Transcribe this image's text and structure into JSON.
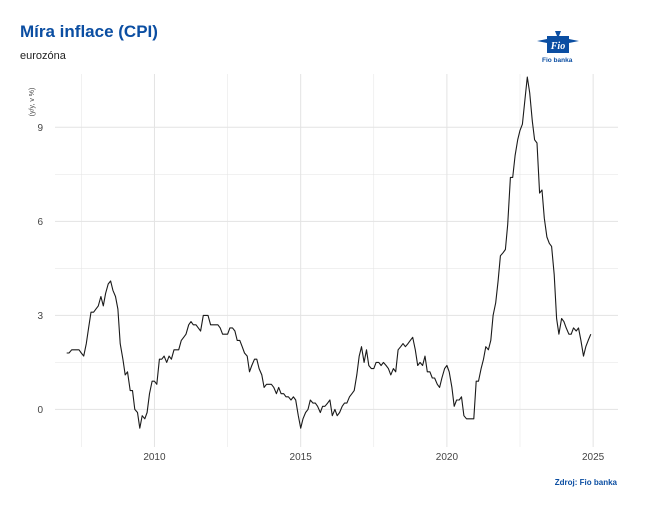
{
  "header": {
    "title": "Míra inflace (CPI)",
    "subtitle": "eurozóna",
    "logo_text": "Fio banka",
    "logo_mark": "Fio",
    "source": "Zdroj: Fio banka"
  },
  "colors": {
    "title": "#0b4ea2",
    "line": "#1a1a1a",
    "grid": "#e3e3e3"
  },
  "chart_data": {
    "type": "line",
    "title": "Míra inflace (CPI)",
    "subtitle": "eurozóna",
    "xlabel": "",
    "ylabel": "(y/y, v %)",
    "xlim": [
      2006.6,
      2025.85
    ],
    "ylim": [
      -1.2,
      10.7
    ],
    "xticks": [
      2010,
      2015,
      2020,
      2025
    ],
    "yticks": [
      0,
      3,
      6,
      9
    ],
    "grid": true,
    "legend": "none",
    "series": [
      {
        "name": "",
        "x": [
          2007.0,
          2007.08,
          2007.17,
          2007.25,
          2007.33,
          2007.42,
          2007.5,
          2007.58,
          2007.67,
          2007.75,
          2007.83,
          2007.92,
          2008.0,
          2008.08,
          2008.17,
          2008.25,
          2008.33,
          2008.42,
          2008.5,
          2008.58,
          2008.67,
          2008.75,
          2008.83,
          2008.92,
          2009.0,
          2009.08,
          2009.17,
          2009.25,
          2009.33,
          2009.42,
          2009.5,
          2009.58,
          2009.67,
          2009.75,
          2009.83,
          2009.92,
          2010.0,
          2010.08,
          2010.17,
          2010.25,
          2010.33,
          2010.42,
          2010.5,
          2010.58,
          2010.67,
          2010.75,
          2010.83,
          2010.92,
          2011.0,
          2011.08,
          2011.17,
          2011.25,
          2011.33,
          2011.42,
          2011.5,
          2011.58,
          2011.67,
          2011.75,
          2011.83,
          2011.92,
          2012.0,
          2012.08,
          2012.17,
          2012.25,
          2012.33,
          2012.42,
          2012.5,
          2012.58,
          2012.67,
          2012.75,
          2012.83,
          2012.92,
          2013.0,
          2013.08,
          2013.17,
          2013.25,
          2013.33,
          2013.42,
          2013.5,
          2013.58,
          2013.67,
          2013.75,
          2013.83,
          2013.92,
          2014.0,
          2014.08,
          2014.17,
          2014.25,
          2014.33,
          2014.42,
          2014.5,
          2014.58,
          2014.67,
          2014.75,
          2014.83,
          2014.92,
          2015.0,
          2015.08,
          2015.17,
          2015.25,
          2015.33,
          2015.42,
          2015.5,
          2015.58,
          2015.67,
          2015.75,
          2015.83,
          2015.92,
          2016.0,
          2016.08,
          2016.17,
          2016.25,
          2016.33,
          2016.42,
          2016.5,
          2016.58,
          2016.67,
          2016.75,
          2016.83,
          2016.92,
          2017.0,
          2017.08,
          2017.17,
          2017.25,
          2017.33,
          2017.42,
          2017.5,
          2017.58,
          2017.67,
          2017.75,
          2017.83,
          2017.92,
          2018.0,
          2018.08,
          2018.17,
          2018.25,
          2018.33,
          2018.42,
          2018.5,
          2018.58,
          2018.67,
          2018.75,
          2018.83,
          2018.92,
          2019.0,
          2019.08,
          2019.17,
          2019.25,
          2019.33,
          2019.42,
          2019.5,
          2019.58,
          2019.67,
          2019.75,
          2019.83,
          2019.92,
          2020.0,
          2020.08,
          2020.17,
          2020.25,
          2020.33,
          2020.42,
          2020.5,
          2020.58,
          2020.67,
          2020.75,
          2020.83,
          2020.92,
          2021.0,
          2021.08,
          2021.17,
          2021.25,
          2021.33,
          2021.42,
          2021.5,
          2021.58,
          2021.67,
          2021.75,
          2021.83,
          2021.92,
          2022.0,
          2022.08,
          2022.17,
          2022.25,
          2022.33,
          2022.42,
          2022.5,
          2022.58,
          2022.67,
          2022.75,
          2022.83,
          2022.92,
          2023.0,
          2023.08,
          2023.17,
          2023.25,
          2023.33,
          2023.42,
          2023.5,
          2023.58,
          2023.67,
          2023.75,
          2023.83,
          2023.92,
          2024.0,
          2024.08,
          2024.17,
          2024.25,
          2024.33,
          2024.42,
          2024.5,
          2024.58,
          2024.67,
          2024.75,
          2024.83,
          2024.92
        ],
        "values": [
          1.8,
          1.8,
          1.9,
          1.9,
          1.9,
          1.9,
          1.8,
          1.7,
          2.1,
          2.6,
          3.1,
          3.1,
          3.2,
          3.3,
          3.6,
          3.3,
          3.7,
          4.0,
          4.1,
          3.8,
          3.6,
          3.2,
          2.1,
          1.6,
          1.1,
          1.2,
          0.6,
          0.6,
          0.0,
          -0.1,
          -0.6,
          -0.2,
          -0.3,
          -0.1,
          0.5,
          0.9,
          0.9,
          0.8,
          1.6,
          1.6,
          1.7,
          1.5,
          1.7,
          1.6,
          1.9,
          1.9,
          1.9,
          2.2,
          2.3,
          2.4,
          2.7,
          2.8,
          2.7,
          2.7,
          2.6,
          2.5,
          3.0,
          3.0,
          3.0,
          2.7,
          2.7,
          2.7,
          2.7,
          2.6,
          2.4,
          2.4,
          2.4,
          2.6,
          2.6,
          2.5,
          2.2,
          2.2,
          2.0,
          1.8,
          1.7,
          1.2,
          1.4,
          1.6,
          1.6,
          1.3,
          1.1,
          0.7,
          0.8,
          0.8,
          0.8,
          0.7,
          0.5,
          0.7,
          0.5,
          0.5,
          0.4,
          0.4,
          0.3,
          0.4,
          0.3,
          -0.2,
          -0.6,
          -0.3,
          -0.1,
          0.0,
          0.3,
          0.2,
          0.2,
          0.1,
          -0.1,
          0.1,
          0.1,
          0.2,
          0.3,
          -0.2,
          0.0,
          -0.2,
          -0.1,
          0.1,
          0.2,
          0.2,
          0.4,
          0.5,
          0.6,
          1.1,
          1.7,
          2.0,
          1.5,
          1.9,
          1.4,
          1.3,
          1.3,
          1.5,
          1.5,
          1.4,
          1.5,
          1.4,
          1.3,
          1.1,
          1.3,
          1.2,
          1.9,
          2.0,
          2.1,
          2.0,
          2.1,
          2.2,
          2.3,
          1.9,
          1.4,
          1.5,
          1.4,
          1.7,
          1.2,
          1.2,
          1.0,
          1.0,
          0.8,
          0.7,
          1.0,
          1.3,
          1.4,
          1.2,
          0.7,
          0.1,
          0.3,
          0.3,
          0.4,
          -0.2,
          -0.3,
          -0.3,
          -0.3,
          -0.3,
          0.9,
          0.9,
          1.3,
          1.6,
          2.0,
          1.9,
          2.2,
          3.0,
          3.4,
          4.1,
          4.9,
          5.0,
          5.1,
          5.9,
          7.4,
          7.4,
          8.1,
          8.6,
          8.9,
          9.1,
          9.9,
          10.6,
          10.1,
          9.2,
          8.6,
          8.5,
          6.9,
          7.0,
          6.1,
          5.5,
          5.3,
          5.2,
          4.3,
          2.9,
          2.4,
          2.9,
          2.8,
          2.6,
          2.4,
          2.4,
          2.6,
          2.5,
          2.6,
          2.2,
          1.7,
          2.0,
          2.2,
          2.4
        ]
      }
    ]
  }
}
